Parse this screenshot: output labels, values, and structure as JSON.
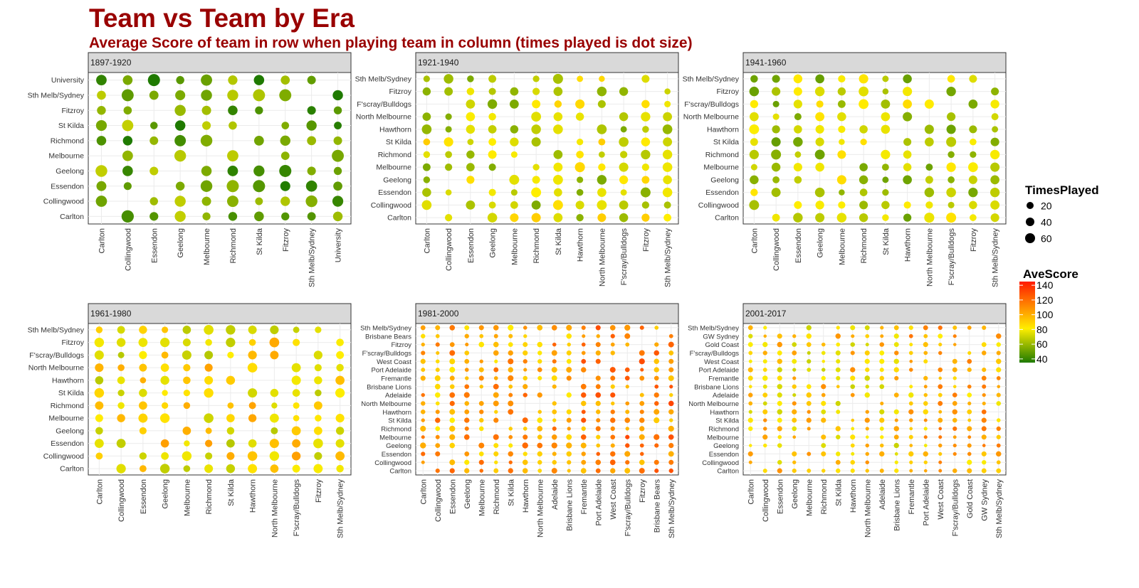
{
  "header": {
    "title": "Team vs Team by Era",
    "subtitle": "Average Score of team in row when playing team in column (times played is dot size)"
  },
  "legend": {
    "size_title": "TimesPlayed",
    "size_entries": [
      20,
      40,
      60
    ],
    "color_title": "AveScore",
    "color_ticks": [
      140,
      120,
      100,
      80,
      60,
      40
    ],
    "color_range": [
      35,
      145
    ],
    "colors": {
      "low": "#1f7a00",
      "mid": "#ffee00",
      "high": "#ff1a00"
    }
  },
  "chart_data": [
    {
      "type": "scatter",
      "era": "1897-1920",
      "cols": [
        "Carlton",
        "Collingwood",
        "Essendon",
        "Geelong",
        "Melbourne",
        "Richmond",
        "St Kilda",
        "Fitzroy",
        "Sth Melb/Sydney",
        "University"
      ],
      "rows": [
        "University",
        "Sth Melb/Sydney",
        "Fitzroy",
        "St Kilda",
        "Richmond",
        "Melbourne",
        "Geelong",
        "Essendon",
        "Collingwood",
        "Carlton"
      ],
      "base": 55,
      "size_base": 40
    },
    {
      "type": "scatter",
      "era": "1921-1940",
      "cols": [
        "Carlton",
        "Collingwood",
        "Essendon",
        "Geelong",
        "Melbourne",
        "Richmond",
        "St Kilda",
        "Hawthorn",
        "North Melbourne",
        "F'scray/Bulldogs",
        "Fitzroy",
        "Sth Melb/Sydney"
      ],
      "rows": [
        "Sth Melb/Sydney",
        "Fitzroy",
        "F'scray/Bulldogs",
        "North Melbourne",
        "Hawthorn",
        "St Kilda",
        "Richmond",
        "Melbourne",
        "Geelong",
        "Essendon",
        "Collingwood",
        "Carlton"
      ],
      "base": 76,
      "size_base": 38
    },
    {
      "type": "scatter",
      "era": "1941-1960",
      "cols": [
        "Carlton",
        "Collingwood",
        "Essendon",
        "Geelong",
        "Melbourne",
        "Richmond",
        "St Kilda",
        "Hawthorn",
        "North Melbourne",
        "F'scray/Bulldogs",
        "Fitzroy",
        "Sth Melb/Sydney"
      ],
      "rows": [
        "Sth Melb/Sydney",
        "Fitzroy",
        "F'scray/Bulldogs",
        "North Melbourne",
        "Hawthorn",
        "St Kilda",
        "Richmond",
        "Melbourne",
        "Geelong",
        "Essendon",
        "Collingwood",
        "Carlton"
      ],
      "base": 72,
      "size_base": 38
    },
    {
      "type": "scatter",
      "era": "1961-1980",
      "cols": [
        "Carlton",
        "Collingwood",
        "Essendon",
        "Geelong",
        "Melbourne",
        "Richmond",
        "St Kilda",
        "Hawthorn",
        "North Melbourne",
        "F'scray/Bulldogs",
        "Fitzroy",
        "Sth Melb/Sydney"
      ],
      "rows": [
        "Sth Melb/Sydney",
        "Fitzroy",
        "F'scray/Bulldogs",
        "North Melbourne",
        "Hawthorn",
        "St Kilda",
        "Richmond",
        "Melbourne",
        "Geelong",
        "Essendon",
        "Collingwood",
        "Carlton"
      ],
      "base": 88,
      "size_base": 36
    },
    {
      "type": "scatter",
      "era": "1981-2000",
      "cols": [
        "Carlton",
        "Collingwood",
        "Essendon",
        "Geelong",
        "Melbourne",
        "Richmond",
        "St Kilda",
        "Hawthorn",
        "North Melbourne",
        "Adelaide",
        "Brisbane Lions",
        "Fremantle",
        "Port Adelaide",
        "West Coast",
        "F'scray/Bulldogs",
        "Fitzroy",
        "Brisbane Bears",
        "Sth Melb/Sydney"
      ],
      "rows": [
        "Sth Melb/Sydney",
        "Brisbane Bears",
        "Fitzroy",
        "F'scray/Bulldogs",
        "West Coast",
        "Port Adelaide",
        "Fremantle",
        "Brisbane Lions",
        "Adelaide",
        "North Melbourne",
        "Hawthorn",
        "St Kilda",
        "Richmond",
        "Melbourne",
        "Geelong",
        "Essendon",
        "Collingwood",
        "Carlton"
      ],
      "base": 103,
      "size_base": 30
    },
    {
      "type": "scatter",
      "era": "2001-2017",
      "cols": [
        "Carlton",
        "Collingwood",
        "Essendon",
        "Geelong",
        "Melbourne",
        "Richmond",
        "St Kilda",
        "Hawthorn",
        "North Melbourne",
        "Adelaide",
        "Brisbane Lions",
        "Fremantle",
        "Port Adelaide",
        "West Coast",
        "F'scray/Bulldogs",
        "Gold Coast",
        "GW Sydney",
        "Sth Melb/Sydney"
      ],
      "rows": [
        "Sth Melb/Sydney",
        "GW Sydney",
        "Gold Coast",
        "F'scray/Bulldogs",
        "West Coast",
        "Port Adelaide",
        "Fremantle",
        "Brisbane Lions",
        "Adelaide",
        "North Melbourne",
        "Hawthorn",
        "St Kilda",
        "Richmond",
        "Melbourne",
        "Geelong",
        "Essendon",
        "Collingwood",
        "Carlton"
      ],
      "base": 92,
      "size_base": 24
    }
  ]
}
